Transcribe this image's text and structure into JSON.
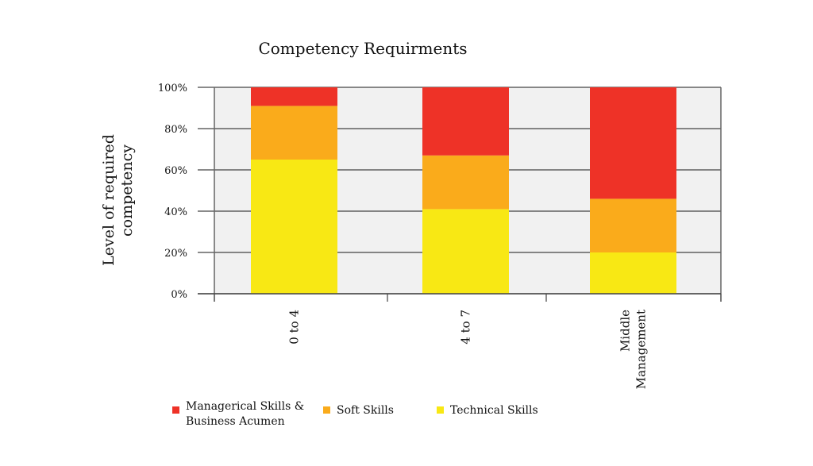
{
  "chart_data": {
    "type": "bar",
    "stacked": true,
    "title": "Competency Requirments",
    "xlabel": "",
    "ylabel": [
      "Level of required",
      "competency"
    ],
    "ylim": [
      0,
      100
    ],
    "y_ticks": [
      "0%",
      "20%",
      "40%",
      "60%",
      "80%",
      "100%"
    ],
    "grid": true,
    "categories": [
      [
        "0 to 4"
      ],
      [
        "4 to 7"
      ],
      [
        "Middle",
        "Management"
      ]
    ],
    "series": [
      {
        "name": "Technical Skills",
        "color": "#f8e814",
        "values": [
          65,
          41,
          20
        ]
      },
      {
        "name": "Soft Skills",
        "color": "#faab1b",
        "values": [
          26,
          26,
          26
        ]
      },
      {
        "name": "Managerical Skills & Business Acumen",
        "label_lines": [
          "Managerical Skills &",
          "Business Acumen"
        ],
        "color": "#ee3227",
        "values": [
          9,
          33,
          54
        ]
      }
    ],
    "legend_position": "bottom",
    "plot_background": "#f1f1f1"
  }
}
